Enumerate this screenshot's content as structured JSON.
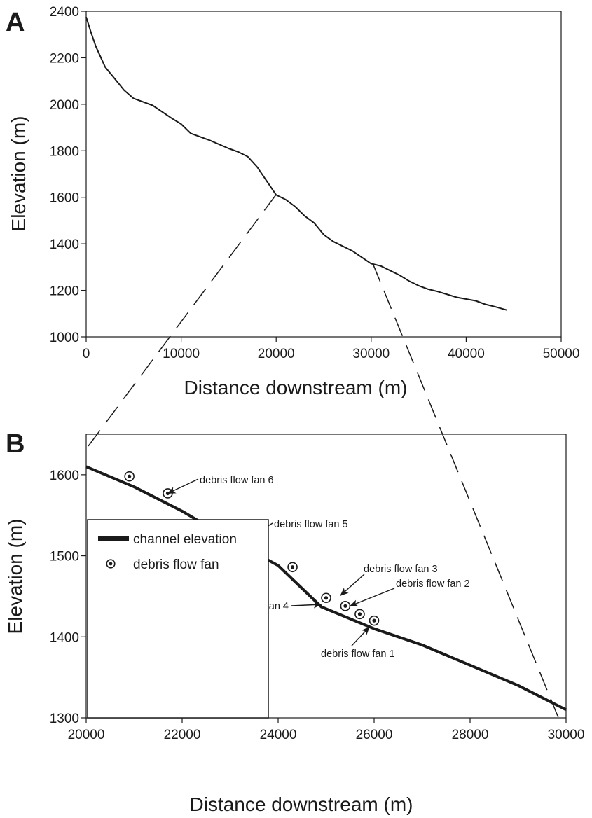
{
  "chart_data": [
    {
      "panel": "A",
      "type": "line",
      "xlabel": "Distance downstream (m)",
      "ylabel": "Elevation (m)",
      "xlim": [
        0,
        50000
      ],
      "ylim": [
        1000,
        2400
      ],
      "xticks": [
        "0",
        "10000",
        "20000",
        "30000",
        "40000",
        "50000"
      ],
      "yticks": [
        "1000",
        "1200",
        "1400",
        "1600",
        "1800",
        "2000",
        "2200",
        "2400"
      ],
      "grid": false,
      "series": [
        {
          "x": [
            0,
            500,
            1000,
            2000,
            3000,
            4000,
            5000,
            7000,
            9000,
            10000,
            11000,
            13000,
            15000,
            16000,
            17000,
            18000,
            20000,
            21000,
            22000,
            23000,
            24000,
            25000,
            26000,
            28000,
            30000,
            31000,
            32000,
            33000,
            34000,
            35000,
            36000,
            37000,
            39000,
            41000,
            42000,
            43000,
            44300
          ],
          "y": [
            2375,
            2310,
            2250,
            2160,
            2110,
            2060,
            2025,
            1995,
            1940,
            1915,
            1875,
            1845,
            1810,
            1795,
            1775,
            1730,
            1610,
            1590,
            1560,
            1520,
            1490,
            1440,
            1410,
            1370,
            1315,
            1305,
            1285,
            1265,
            1240,
            1220,
            1205,
            1195,
            1170,
            1155,
            1140,
            1130,
            1115
          ]
        }
      ]
    },
    {
      "panel": "B",
      "type": "line",
      "xlabel": "Distance downstream (m)",
      "ylabel": "Elevation (m)",
      "xlim": [
        20000,
        30000
      ],
      "ylim": [
        1300,
        1650
      ],
      "xticks": [
        "20000",
        "22000",
        "24000",
        "26000",
        "28000",
        "30000"
      ],
      "yticks": [
        "1300",
        "1400",
        "1500",
        "1600"
      ],
      "grid": false,
      "legend_position": "bottom-left",
      "series": [
        {
          "name": "channel elevation",
          "x": [
            20000,
            21000,
            22000,
            23000,
            24000,
            24900,
            26000,
            27000,
            28000,
            29000,
            30000
          ],
          "y": [
            1610,
            1585,
            1555,
            1520,
            1488,
            1437,
            1410,
            1390,
            1365,
            1340,
            1310
          ]
        },
        {
          "name": "debris flow fan",
          "x": [
            20900,
            21700,
            22900,
            23300,
            23600,
            24300,
            25000,
            25400,
            25700,
            26000
          ],
          "y": [
            1598,
            1577,
            1532,
            1519,
            1509,
            1486,
            1448,
            1438,
            1428,
            1420
          ]
        }
      ],
      "annotations": [
        {
          "text": "debris flow fan 6",
          "x": 21700,
          "y": 1577
        },
        {
          "text": "debris flow fan 5",
          "x": 23300,
          "y": 1519
        },
        {
          "text": "debris flow fan 4",
          "x": 24900,
          "y": 1440
        },
        {
          "text": "debris flow fan 3",
          "x": 25300,
          "y": 1451
        },
        {
          "text": "debris flow fan 2",
          "x": 25500,
          "y": 1438
        },
        {
          "text": "debris flow fan 1",
          "x": 25900,
          "y": 1412
        }
      ]
    }
  ],
  "panel_labels": {
    "a": "A",
    "b": "B"
  },
  "legend": {
    "line_label": "channel elevation",
    "marker_label": "debris flow fan"
  },
  "colors": {
    "line": "#1a1a1a",
    "background": "#ffffff"
  }
}
